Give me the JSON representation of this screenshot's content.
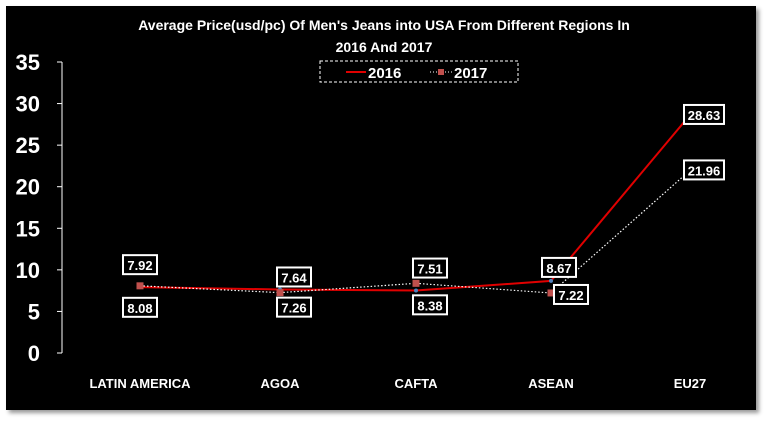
{
  "chart_data": {
    "type": "line",
    "title": [
      "Average Price(usd/pc) Of Men's Jeans into USA From Different Regions In",
      "2016 And 2017"
    ],
    "xlabel": "",
    "ylabel": "",
    "categories": [
      "LATIN AMERICA",
      "AGOA",
      "CAFTA",
      "ASEAN",
      "EU27"
    ],
    "ylim": [
      0,
      35
    ],
    "yticks": [
      0,
      5,
      10,
      15,
      20,
      25,
      30,
      35
    ],
    "grid": false,
    "legend_position": "top-center",
    "series": [
      {
        "name": "2016",
        "values": [
          7.92,
          7.64,
          7.51,
          8.67,
          28.63
        ],
        "color": "#e00000",
        "style": "solid"
      },
      {
        "name": "2017",
        "values": [
          8.08,
          7.26,
          8.38,
          7.22,
          21.96
        ],
        "color": "#ffffff",
        "marker_color": "#c0504d",
        "style": "dotted"
      }
    ]
  }
}
